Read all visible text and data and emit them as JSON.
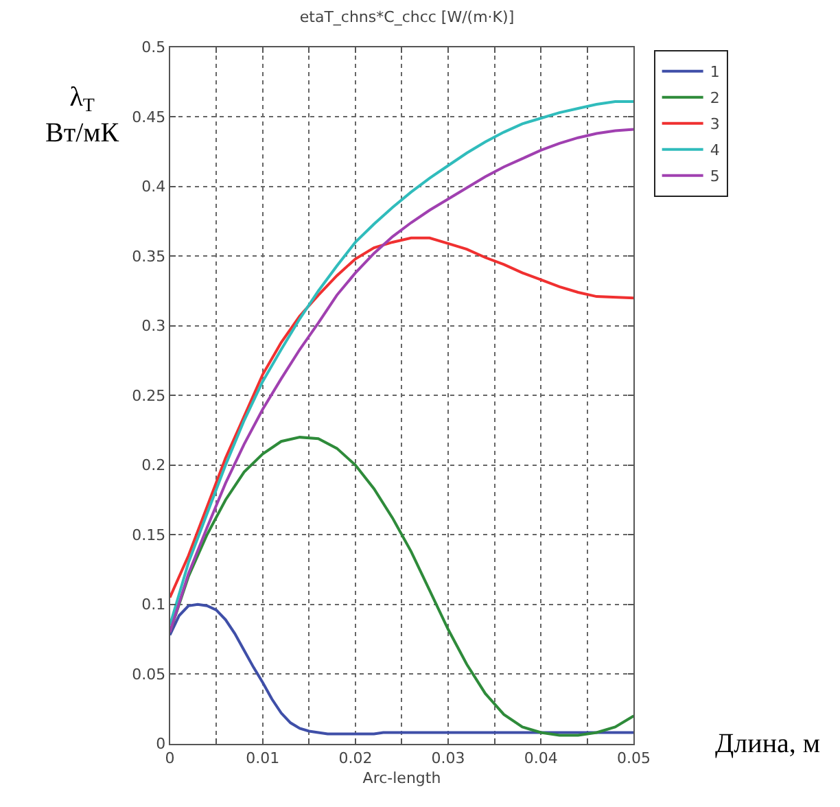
{
  "chart_data": {
    "type": "line",
    "title": "etaT_chns*C_chcc [W/(m·K)]",
    "xlabel": "Arc-length",
    "annotations": [
      "λ$_{T}$\nВт/мК",
      "Длина, м"
    ],
    "xlim": [
      0,
      0.05
    ],
    "ylim": [
      0,
      0.5
    ],
    "xticks": [
      0,
      {
        "value": 0.005,
        "label": null
      },
      0.01,
      {
        "value": 0.015,
        "label": null
      },
      0.02,
      {
        "value": 0.025,
        "label": null
      },
      0.03,
      {
        "value": 0.035,
        "label": null
      },
      0.04,
      {
        "value": 0.045,
        "label": null
      },
      0.05
    ],
    "yticks": [
      0,
      0.05,
      0.1,
      0.15,
      0.2,
      0.25,
      0.3,
      0.35,
      0.4,
      0.45,
      0.5
    ],
    "grid": true,
    "legend": "top right",
    "marker": "none",
    "line_style": "solid",
    "series": [
      {
        "name": "1",
        "color": "#3f4fa8",
        "x": [
          0,
          0.001,
          0.002,
          0.003,
          0.004,
          0.005,
          0.006,
          0.007,
          0.008,
          0.009,
          0.01,
          0.011,
          0.012,
          0.013,
          0.014,
          0.015,
          0.017,
          0.02,
          0.022,
          0.023,
          0.05
        ],
        "values": [
          0.078,
          0.092,
          0.099,
          0.1,
          0.099,
          0.096,
          0.089,
          0.079,
          0.067,
          0.055,
          0.044,
          0.032,
          0.022,
          0.015,
          0.011,
          0.009,
          0.007,
          0.007,
          0.007,
          0.008,
          0.008
        ]
      },
      {
        "name": "2",
        "color": "#2e8b3a",
        "x": [
          0,
          0.002,
          0.004,
          0.006,
          0.008,
          0.01,
          0.012,
          0.014,
          0.016,
          0.018,
          0.02,
          0.022,
          0.024,
          0.026,
          0.028,
          0.03,
          0.032,
          0.034,
          0.036,
          0.038,
          0.04,
          0.042,
          0.044,
          0.046,
          0.048,
          0.05
        ],
        "values": [
          0.08,
          0.12,
          0.15,
          0.175,
          0.195,
          0.208,
          0.217,
          0.22,
          0.219,
          0.212,
          0.2,
          0.183,
          0.162,
          0.138,
          0.11,
          0.082,
          0.057,
          0.036,
          0.021,
          0.012,
          0.008,
          0.006,
          0.006,
          0.008,
          0.012,
          0.02
        ]
      },
      {
        "name": "3",
        "color": "#f03030",
        "x": [
          0,
          0.002,
          0.004,
          0.006,
          0.008,
          0.01,
          0.012,
          0.014,
          0.016,
          0.018,
          0.02,
          0.022,
          0.024,
          0.026,
          0.028,
          0.03,
          0.032,
          0.034,
          0.036,
          0.038,
          0.04,
          0.042,
          0.044,
          0.046,
          0.05
        ],
        "values": [
          0.105,
          0.135,
          0.17,
          0.205,
          0.235,
          0.265,
          0.288,
          0.307,
          0.322,
          0.336,
          0.348,
          0.356,
          0.36,
          0.363,
          0.363,
          0.359,
          0.355,
          0.349,
          0.344,
          0.338,
          0.333,
          0.328,
          0.324,
          0.321,
          0.32
        ]
      },
      {
        "name": "4",
        "color": "#30bcbc",
        "x": [
          0,
          0.002,
          0.004,
          0.006,
          0.008,
          0.01,
          0.012,
          0.014,
          0.016,
          0.018,
          0.02,
          0.022,
          0.024,
          0.026,
          0.028,
          0.03,
          0.032,
          0.034,
          0.036,
          0.038,
          0.04,
          0.042,
          0.044,
          0.046,
          0.048,
          0.05
        ],
        "values": [
          0.085,
          0.13,
          0.165,
          0.2,
          0.232,
          0.26,
          0.283,
          0.305,
          0.325,
          0.343,
          0.36,
          0.373,
          0.385,
          0.396,
          0.406,
          0.415,
          0.424,
          0.432,
          0.439,
          0.445,
          0.449,
          0.453,
          0.456,
          0.459,
          0.461,
          0.461
        ]
      },
      {
        "name": "5",
        "color": "#a040b0",
        "x": [
          0,
          0.002,
          0.004,
          0.006,
          0.008,
          0.01,
          0.012,
          0.014,
          0.016,
          0.018,
          0.02,
          0.022,
          0.024,
          0.026,
          0.028,
          0.03,
          0.032,
          0.034,
          0.036,
          0.038,
          0.04,
          0.042,
          0.044,
          0.046,
          0.048,
          0.05
        ],
        "values": [
          0.08,
          0.122,
          0.155,
          0.187,
          0.215,
          0.24,
          0.262,
          0.283,
          0.302,
          0.322,
          0.338,
          0.352,
          0.364,
          0.374,
          0.383,
          0.391,
          0.399,
          0.407,
          0.414,
          0.42,
          0.426,
          0.431,
          0.435,
          0.438,
          0.44,
          0.441
        ]
      }
    ]
  }
}
